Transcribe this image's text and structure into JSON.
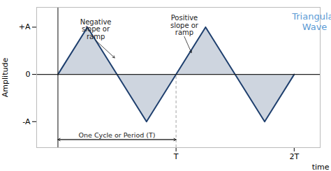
{
  "chart_data": {
    "type": "area",
    "title": "Triangular\nWave",
    "xlabel": "time",
    "ylabel": "Amplitude",
    "x": [
      0,
      0.25,
      0.75,
      1.25,
      1.75,
      2.0
    ],
    "values": [
      0,
      1,
      -1,
      1,
      -1,
      0
    ],
    "color": "#1e3f6e",
    "xlim": [
      -0.18,
      2.22
    ],
    "ylim": [
      -1.55,
      1.42
    ],
    "xticks": [
      {
        "value": 1,
        "label": "T"
      },
      {
        "value": 2,
        "label": "2T"
      }
    ],
    "yticks": [
      {
        "value": 1,
        "label": "+A"
      },
      0,
      {
        "value": -1,
        "label": "-A"
      }
    ],
    "grid": false,
    "annotations": [
      {
        "text": "Negative\nslope or\nramp",
        "xy": [
          0.48,
          0.35
        ],
        "xytext": [
          0.32,
          0.72
        ]
      },
      {
        "text": "Positive\nslope or\nramp",
        "xy": [
          1.13,
          0.46
        ],
        "xytext": [
          1.07,
          0.8
        ]
      },
      {
        "text": "One Cycle or Period (T)",
        "from": [
          0,
          -1.38
        ],
        "to": [
          1,
          -1.38
        ]
      }
    ]
  }
}
